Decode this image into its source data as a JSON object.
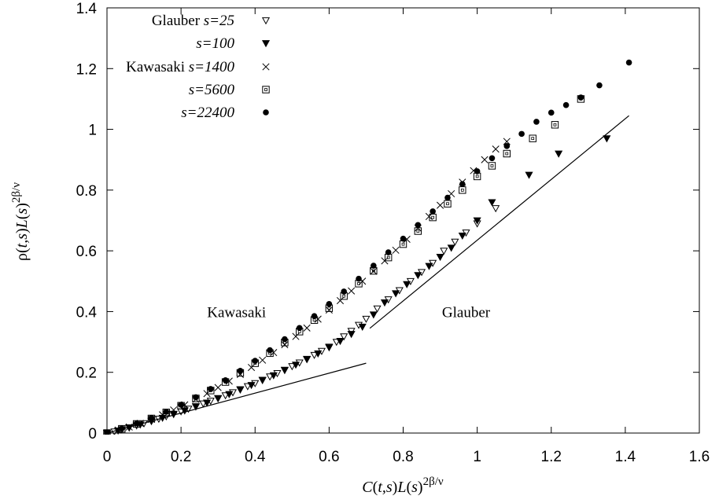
{
  "chart_data": {
    "type": "scatter",
    "x_axis": {
      "range": [
        0,
        1.6
      ],
      "ticks": [
        0,
        0.2,
        0.4,
        0.6,
        0.8,
        1,
        1.2,
        1.4,
        1.6
      ],
      "tick_labels": [
        "0",
        "0.2",
        "0.4",
        "0.6",
        "0.8",
        "1",
        "1.2",
        "1.4",
        "1.6"
      ],
      "label_parts": [
        "C",
        "(",
        "t,s",
        ")",
        "L",
        "(",
        "s",
        ")",
        "2β/ν"
      ]
    },
    "y_axis": {
      "range": [
        0,
        1.4
      ],
      "ticks": [
        0,
        0.2,
        0.4,
        0.6,
        0.8,
        1,
        1.2,
        1.4
      ],
      "tick_labels": [
        "0",
        "0.2",
        "0.4",
        "0.6",
        "0.8",
        "1",
        "1.2",
        "1.4"
      ],
      "label_parts": [
        "ρ(",
        "t,s",
        ")",
        "L",
        "(",
        "s",
        ")",
        "2β/ν"
      ]
    },
    "grid": false,
    "legend_position": "top-left",
    "series": [
      {
        "legend_prefix": "Glauber ",
        "legend_italic": "s=25",
        "marker": "triangle-open",
        "points": [
          [
            0.0,
            0.0
          ],
          [
            0.02,
            0.005
          ],
          [
            0.04,
            0.012
          ],
          [
            0.06,
            0.018
          ],
          [
            0.08,
            0.025
          ],
          [
            0.1,
            0.032
          ],
          [
            0.12,
            0.04
          ],
          [
            0.14,
            0.047
          ],
          [
            0.16,
            0.055
          ],
          [
            0.18,
            0.063
          ],
          [
            0.2,
            0.071
          ],
          [
            0.22,
            0.08
          ],
          [
            0.24,
            0.088
          ],
          [
            0.26,
            0.097
          ],
          [
            0.28,
            0.106
          ],
          [
            0.3,
            0.115
          ],
          [
            0.32,
            0.124
          ],
          [
            0.34,
            0.134
          ],
          [
            0.36,
            0.144
          ],
          [
            0.38,
            0.154
          ],
          [
            0.4,
            0.164
          ],
          [
            0.42,
            0.175
          ],
          [
            0.44,
            0.186
          ],
          [
            0.46,
            0.197
          ],
          [
            0.48,
            0.208
          ],
          [
            0.5,
            0.22
          ],
          [
            0.52,
            0.232
          ],
          [
            0.54,
            0.244
          ],
          [
            0.56,
            0.257
          ],
          [
            0.58,
            0.27
          ],
          [
            0.6,
            0.284
          ],
          [
            0.62,
            0.3
          ],
          [
            0.64,
            0.318
          ],
          [
            0.66,
            0.336
          ],
          [
            0.68,
            0.356
          ],
          [
            0.7,
            0.376
          ],
          [
            0.73,
            0.41
          ],
          [
            0.76,
            0.44
          ],
          [
            0.79,
            0.47
          ],
          [
            0.82,
            0.5
          ],
          [
            0.85,
            0.53
          ],
          [
            0.88,
            0.56
          ],
          [
            0.91,
            0.6
          ],
          [
            0.94,
            0.63
          ],
          [
            0.97,
            0.66
          ],
          [
            1.0,
            0.69
          ],
          [
            1.05,
            0.74
          ]
        ]
      },
      {
        "legend_prefix": "",
        "legend_italic": "s=100",
        "marker": "triangle-filled",
        "points": [
          [
            0.0,
            0.0
          ],
          [
            0.03,
            0.008
          ],
          [
            0.06,
            0.018
          ],
          [
            0.09,
            0.028
          ],
          [
            0.12,
            0.039
          ],
          [
            0.15,
            0.05
          ],
          [
            0.18,
            0.062
          ],
          [
            0.21,
            0.074
          ],
          [
            0.24,
            0.087
          ],
          [
            0.27,
            0.1
          ],
          [
            0.3,
            0.114
          ],
          [
            0.33,
            0.128
          ],
          [
            0.36,
            0.143
          ],
          [
            0.39,
            0.158
          ],
          [
            0.42,
            0.174
          ],
          [
            0.45,
            0.19
          ],
          [
            0.48,
            0.207
          ],
          [
            0.51,
            0.225
          ],
          [
            0.54,
            0.243
          ],
          [
            0.57,
            0.262
          ],
          [
            0.6,
            0.282
          ],
          [
            0.63,
            0.303
          ],
          [
            0.66,
            0.326
          ],
          [
            0.69,
            0.35
          ],
          [
            0.72,
            0.39
          ],
          [
            0.75,
            0.43
          ],
          [
            0.78,
            0.46
          ],
          [
            0.81,
            0.49
          ],
          [
            0.84,
            0.52
          ],
          [
            0.87,
            0.55
          ],
          [
            0.9,
            0.58
          ],
          [
            0.93,
            0.61
          ],
          [
            0.96,
            0.65
          ],
          [
            1.0,
            0.7
          ],
          [
            1.04,
            0.76
          ],
          [
            1.14,
            0.85
          ],
          [
            1.22,
            0.92
          ],
          [
            1.35,
            0.97
          ]
        ]
      },
      {
        "legend_prefix": "Kawasaki ",
        "legend_italic": "s=1400",
        "marker": "cross",
        "points": [
          [
            0.0,
            0.0
          ],
          [
            0.03,
            0.01
          ],
          [
            0.06,
            0.02
          ],
          [
            0.09,
            0.032
          ],
          [
            0.12,
            0.045
          ],
          [
            0.15,
            0.06
          ],
          [
            0.18,
            0.076
          ],
          [
            0.21,
            0.093
          ],
          [
            0.24,
            0.111
          ],
          [
            0.27,
            0.13
          ],
          [
            0.3,
            0.15
          ],
          [
            0.33,
            0.171
          ],
          [
            0.36,
            0.193
          ],
          [
            0.39,
            0.216
          ],
          [
            0.42,
            0.24
          ],
          [
            0.45,
            0.265
          ],
          [
            0.48,
            0.291
          ],
          [
            0.51,
            0.318
          ],
          [
            0.54,
            0.346
          ],
          [
            0.57,
            0.375
          ],
          [
            0.6,
            0.405
          ],
          [
            0.63,
            0.436
          ],
          [
            0.66,
            0.468
          ],
          [
            0.69,
            0.5
          ],
          [
            0.72,
            0.533
          ],
          [
            0.75,
            0.567
          ],
          [
            0.78,
            0.602
          ],
          [
            0.81,
            0.638
          ],
          [
            0.84,
            0.675
          ],
          [
            0.87,
            0.713
          ],
          [
            0.9,
            0.75
          ],
          [
            0.93,
            0.788
          ],
          [
            0.96,
            0.826
          ],
          [
            0.99,
            0.864
          ],
          [
            1.02,
            0.9
          ],
          [
            1.05,
            0.935
          ],
          [
            1.08,
            0.96
          ]
        ]
      },
      {
        "legend_prefix": "",
        "legend_italic": "s=5600",
        "marker": "square-open",
        "points": [
          [
            0.0,
            0.0
          ],
          [
            0.04,
            0.014
          ],
          [
            0.08,
            0.03
          ],
          [
            0.12,
            0.048
          ],
          [
            0.16,
            0.068
          ],
          [
            0.2,
            0.09
          ],
          [
            0.24,
            0.114
          ],
          [
            0.28,
            0.14
          ],
          [
            0.32,
            0.168
          ],
          [
            0.36,
            0.198
          ],
          [
            0.4,
            0.23
          ],
          [
            0.44,
            0.263
          ],
          [
            0.48,
            0.298
          ],
          [
            0.52,
            0.334
          ],
          [
            0.56,
            0.372
          ],
          [
            0.6,
            0.411
          ],
          [
            0.64,
            0.451
          ],
          [
            0.68,
            0.492
          ],
          [
            0.72,
            0.534
          ],
          [
            0.76,
            0.578
          ],
          [
            0.8,
            0.622
          ],
          [
            0.84,
            0.665
          ],
          [
            0.88,
            0.71
          ],
          [
            0.92,
            0.755
          ],
          [
            0.96,
            0.8
          ],
          [
            1.0,
            0.845
          ],
          [
            1.04,
            0.88
          ],
          [
            1.08,
            0.92
          ],
          [
            1.15,
            0.97
          ],
          [
            1.21,
            1.015
          ],
          [
            1.28,
            1.1
          ]
        ]
      },
      {
        "legend_prefix": "",
        "legend_italic": "s=22400",
        "marker": "circle-filled",
        "points": [
          [
            0.0,
            0.0
          ],
          [
            0.04,
            0.015
          ],
          [
            0.08,
            0.032
          ],
          [
            0.12,
            0.05
          ],
          [
            0.16,
            0.07
          ],
          [
            0.2,
            0.093
          ],
          [
            0.24,
            0.118
          ],
          [
            0.28,
            0.145
          ],
          [
            0.32,
            0.174
          ],
          [
            0.36,
            0.205
          ],
          [
            0.4,
            0.238
          ],
          [
            0.44,
            0.273
          ],
          [
            0.48,
            0.309
          ],
          [
            0.52,
            0.346
          ],
          [
            0.56,
            0.385
          ],
          [
            0.6,
            0.425
          ],
          [
            0.64,
            0.466
          ],
          [
            0.68,
            0.508
          ],
          [
            0.72,
            0.551
          ],
          [
            0.76,
            0.595
          ],
          [
            0.8,
            0.64
          ],
          [
            0.84,
            0.685
          ],
          [
            0.88,
            0.73
          ],
          [
            0.92,
            0.775
          ],
          [
            0.96,
            0.82
          ],
          [
            1.0,
            0.862
          ],
          [
            1.04,
            0.905
          ],
          [
            1.08,
            0.945
          ],
          [
            1.12,
            0.985
          ],
          [
            1.16,
            1.025
          ],
          [
            1.2,
            1.055
          ],
          [
            1.24,
            1.08
          ],
          [
            1.28,
            1.105
          ],
          [
            1.33,
            1.145
          ],
          [
            1.41,
            1.22
          ]
        ]
      }
    ],
    "reference_lines": [
      {
        "points": [
          [
            0.0,
            0.0
          ],
          [
            0.7,
            0.23
          ]
        ]
      },
      {
        "points": [
          [
            0.71,
            0.345
          ],
          [
            1.41,
            1.045
          ]
        ]
      }
    ],
    "annotations": [
      {
        "text": "Kawasaki",
        "x": 0.35,
        "y": 0.4
      },
      {
        "text": "Glauber",
        "x": 0.97,
        "y": 0.4
      }
    ]
  }
}
